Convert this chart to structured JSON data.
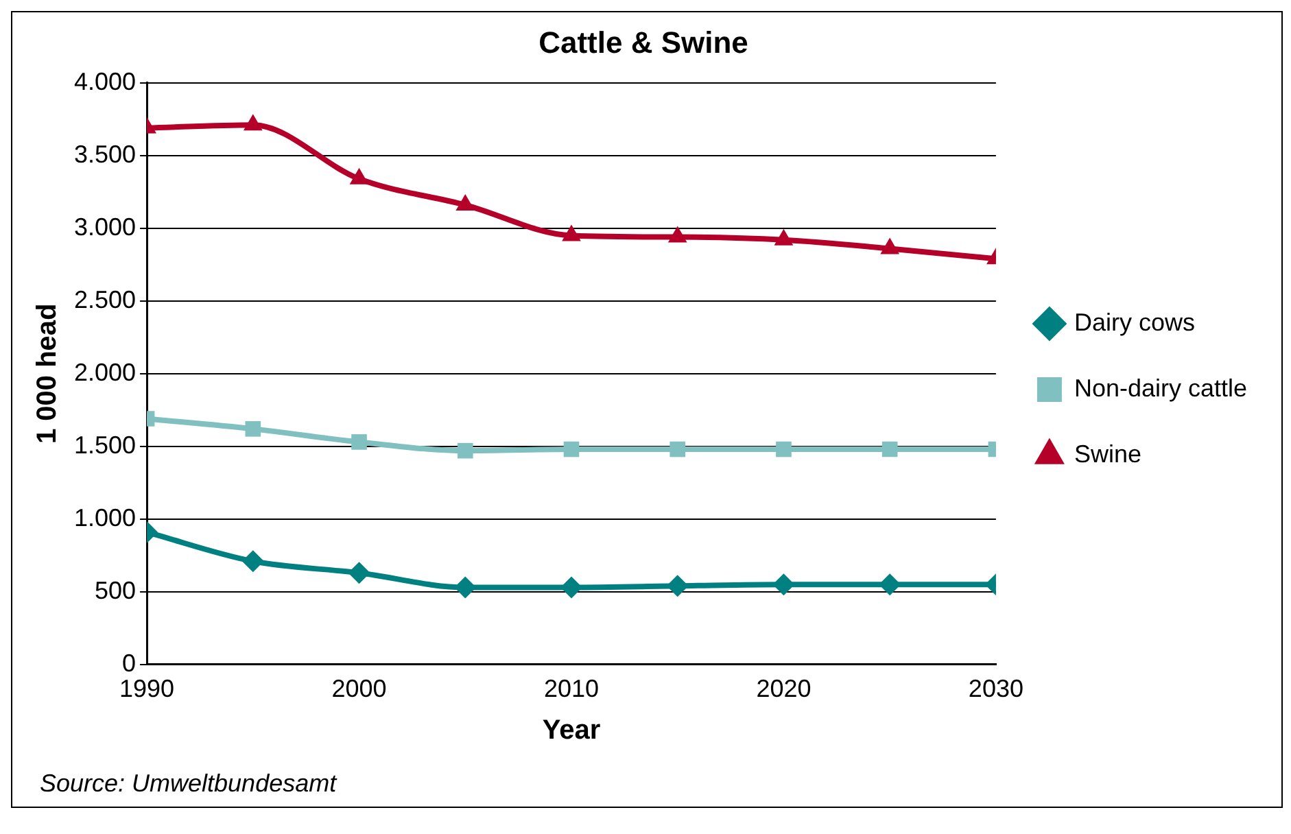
{
  "chart_data": {
    "type": "line",
    "title": "Cattle & Swine",
    "xlabel": "Year",
    "ylabel": "1 000 head",
    "x": [
      1990,
      1995,
      2000,
      2005,
      2010,
      2015,
      2020,
      2025,
      2030
    ],
    "series": [
      {
        "name": "Dairy cows",
        "color": "#008080",
        "marker": "diamond",
        "values": [
          910,
          710,
          630,
          530,
          530,
          540,
          550,
          550,
          550
        ]
      },
      {
        "name": "Non-dairy cattle",
        "color": "#80c0c0",
        "marker": "square",
        "values": [
          1690,
          1620,
          1530,
          1470,
          1480,
          1480,
          1480,
          1480,
          1480
        ]
      },
      {
        "name": "Swine",
        "color": "#b5002a",
        "marker": "triangle",
        "values": [
          3690,
          3710,
          3340,
          3160,
          2950,
          2940,
          2920,
          2860,
          2790
        ]
      }
    ],
    "xlim": [
      1990,
      2030
    ],
    "xticks": [
      1990,
      2000,
      2010,
      2020,
      2030
    ],
    "ylim": [
      0,
      4000
    ],
    "yticks": [
      0,
      500,
      {
        "value": 1000,
        "label": "1.000"
      },
      {
        "value": 1500,
        "label": "1.500"
      },
      {
        "value": 2000,
        "label": "2.000"
      },
      {
        "value": 2500,
        "label": "2.500"
      },
      {
        "value": 3000,
        "label": "3.000"
      },
      {
        "value": 3500,
        "label": "3.500"
      },
      {
        "value": 4000,
        "label": "4.000"
      }
    ],
    "grid": "y",
    "legend": "right",
    "annotations": [
      "Source: Umweltbundesamt"
    ]
  }
}
